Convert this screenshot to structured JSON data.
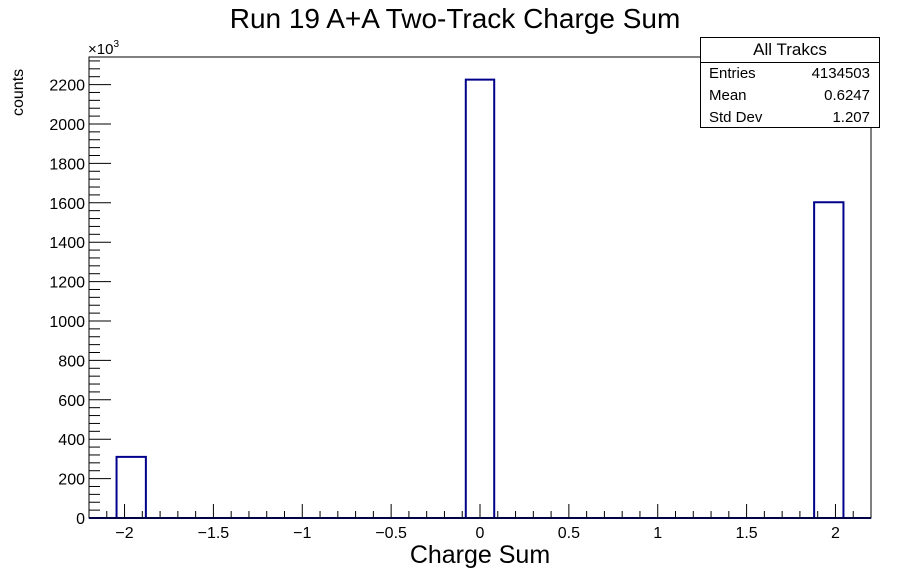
{
  "chart_data": {
    "type": "bar",
    "title": "Run 19 A+A Two-Track Charge Sum",
    "xlabel": "Charge Sum",
    "ylabel": "counts",
    "y_multiplier_label": "×10",
    "y_multiplier_exponent": "3",
    "xlim": [
      -2.2,
      2.2
    ],
    "ylim": [
      0,
      2340
    ],
    "x_ticks": [
      -2,
      -1.5,
      -1,
      -0.5,
      0,
      0.5,
      1,
      1.5,
      2
    ],
    "x_tick_labels": [
      "−2",
      "−1.5",
      "−1",
      "−0.5",
      "0",
      "0.5",
      "1",
      "1.5",
      "2"
    ],
    "y_ticks": [
      0,
      200,
      400,
      600,
      800,
      1000,
      1200,
      1400,
      1600,
      1800,
      2000,
      2200
    ],
    "y_tick_labels": [
      "0",
      "200",
      "400",
      "600",
      "800",
      "1000",
      "1200",
      "1400",
      "1600",
      "1800",
      "2000",
      "2200"
    ],
    "bins": [
      {
        "x_low": -2.045,
        "x_high": -1.88,
        "value": 310
      },
      {
        "x_low": -0.08,
        "x_high": 0.08,
        "value": 2225
      },
      {
        "x_low": 1.88,
        "x_high": 2.045,
        "value": 1603
      }
    ],
    "series_color": "#00008b",
    "grid": false,
    "legend": "none"
  },
  "stats_box": {
    "title": "All Trakcs",
    "rows": [
      {
        "label": "Entries",
        "value": "4134503"
      },
      {
        "label": "Mean",
        "value": "0.6247"
      },
      {
        "label": "Std Dev",
        "value": "1.207"
      }
    ]
  }
}
